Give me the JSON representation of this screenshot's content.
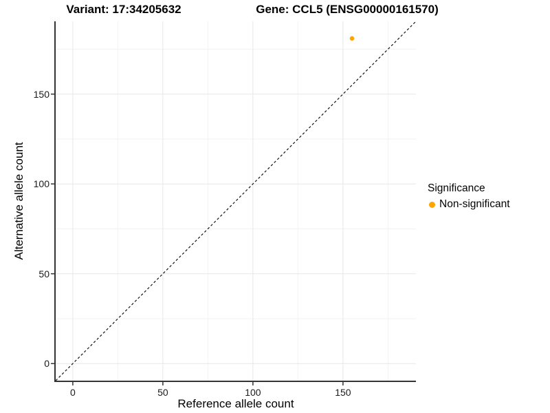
{
  "titles": {
    "variant": "Variant: 17:34205632",
    "gene": "Gene: CCL5 (ENSG00000161570)"
  },
  "chart_data": {
    "type": "scatter",
    "xlabel": "Reference allele count",
    "ylabel": "Alternative allele count",
    "xlim": [
      -9.5,
      190.5
    ],
    "ylim": [
      -9.5,
      190.5
    ],
    "x_ticks": [
      0,
      50,
      100,
      150
    ],
    "y_ticks": [
      0,
      50,
      100,
      150
    ],
    "x_minor_ticks": [
      25,
      75,
      125,
      175
    ],
    "y_minor_ticks": [
      25,
      75,
      125,
      175
    ],
    "grid": "on",
    "points": [
      {
        "x": 155,
        "y": 181,
        "series": "Non-significant"
      }
    ],
    "reference_line": {
      "type": "identity y=x",
      "style": "dashed",
      "from": [
        -9.5,
        -9.5
      ],
      "to": [
        190.5,
        190.5
      ]
    },
    "legend_position": "right"
  },
  "legend": {
    "title": "Significance",
    "items": [
      {
        "label": "Non-significant",
        "color": "#FFA500"
      }
    ]
  },
  "colors": {
    "point_orange": "#FFA500",
    "axis_line": "#333333",
    "tick_mark": "#333333",
    "grid_major": "#e7e7e7",
    "grid_minor": "#f2f2f2",
    "reference_line": "#111111",
    "background": "#ffffff"
  }
}
